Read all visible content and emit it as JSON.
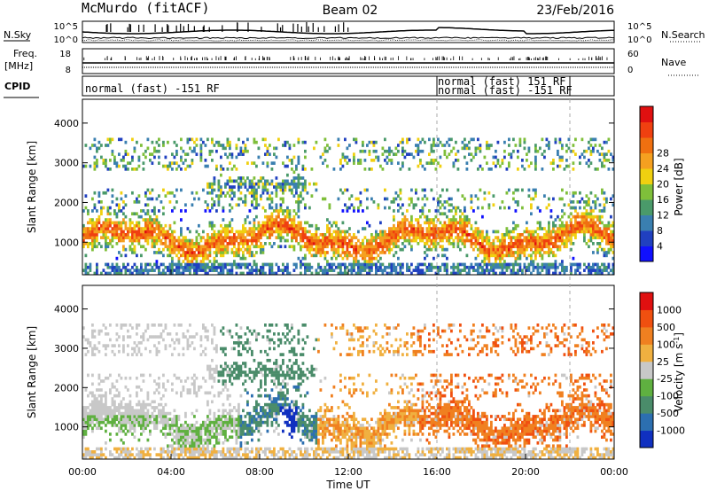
{
  "header": {
    "station": "McMurdo (fitACF)",
    "beam": "Beam 02",
    "date": "23/Feb/2016"
  },
  "noise_panel": {
    "left_label": "N.Sky",
    "right_label": "N.Search",
    "tick_top": "10^5",
    "tick_bottom": "10^0"
  },
  "freq_panel": {
    "left_label_1": "Freq.",
    "left_label_2": "[MHz]",
    "right_label": "Nave",
    "left_ticks": [
      "18",
      "8"
    ],
    "right_ticks": [
      "60",
      "0"
    ]
  },
  "cpid_panel": {
    "label": "CPID",
    "segments": [
      {
        "start": 0,
        "end": 16,
        "text": "normal (fast) -151 RF"
      },
      {
        "start": 16,
        "end": 22,
        "text": "normal (fast) 151 RF"
      },
      {
        "start": 16,
        "end": 22,
        "text": "normal (fast) -151 RF"
      }
    ]
  },
  "chart_data": [
    {
      "type": "heatmap",
      "name": "Power",
      "ylabel": "Slant Range [km]",
      "yticks": [
        1000,
        2000,
        3000,
        4000
      ],
      "ylim": [
        180,
        4600
      ],
      "xlim": [
        0,
        24
      ],
      "colorbar": {
        "label": "Power [dB]",
        "ticks": [
          "4",
          "8",
          "12",
          "16",
          "20",
          "24",
          "28"
        ],
        "colors": [
          "#1010ff",
          "#2040c0",
          "#3a7fb0",
          "#4a9a6a",
          "#7fbf3a",
          "#f0d010",
          "#f5a020",
          "#f07010",
          "#f04010",
          "#e01010"
        ]
      }
    },
    {
      "type": "heatmap",
      "name": "Velocity",
      "ylabel": "Slant Range [km]",
      "yticks": [
        1000,
        2000,
        3000,
        4000
      ],
      "ylim": [
        180,
        4600
      ],
      "xlim": [
        0,
        24
      ],
      "xticks": [
        "00:00",
        "04:00",
        "08:00",
        "12:00",
        "16:00",
        "20:00",
        "00:00"
      ],
      "xlabel": "Time UT",
      "colorbar": {
        "label": "Velocity [m s^-1]",
        "ticks": [
          "1000",
          "500",
          "100",
          "25",
          "-25",
          "-100",
          "-500",
          "-1000"
        ],
        "colors": [
          "#1030c0",
          "#2c6fb0",
          "#4a8c6a",
          "#5fb040",
          "#c8c8c8",
          "#f0b040",
          "#f08020",
          "#f05010",
          "#e01010"
        ]
      }
    }
  ],
  "dashed_lines_ut": [
    16,
    22
  ]
}
